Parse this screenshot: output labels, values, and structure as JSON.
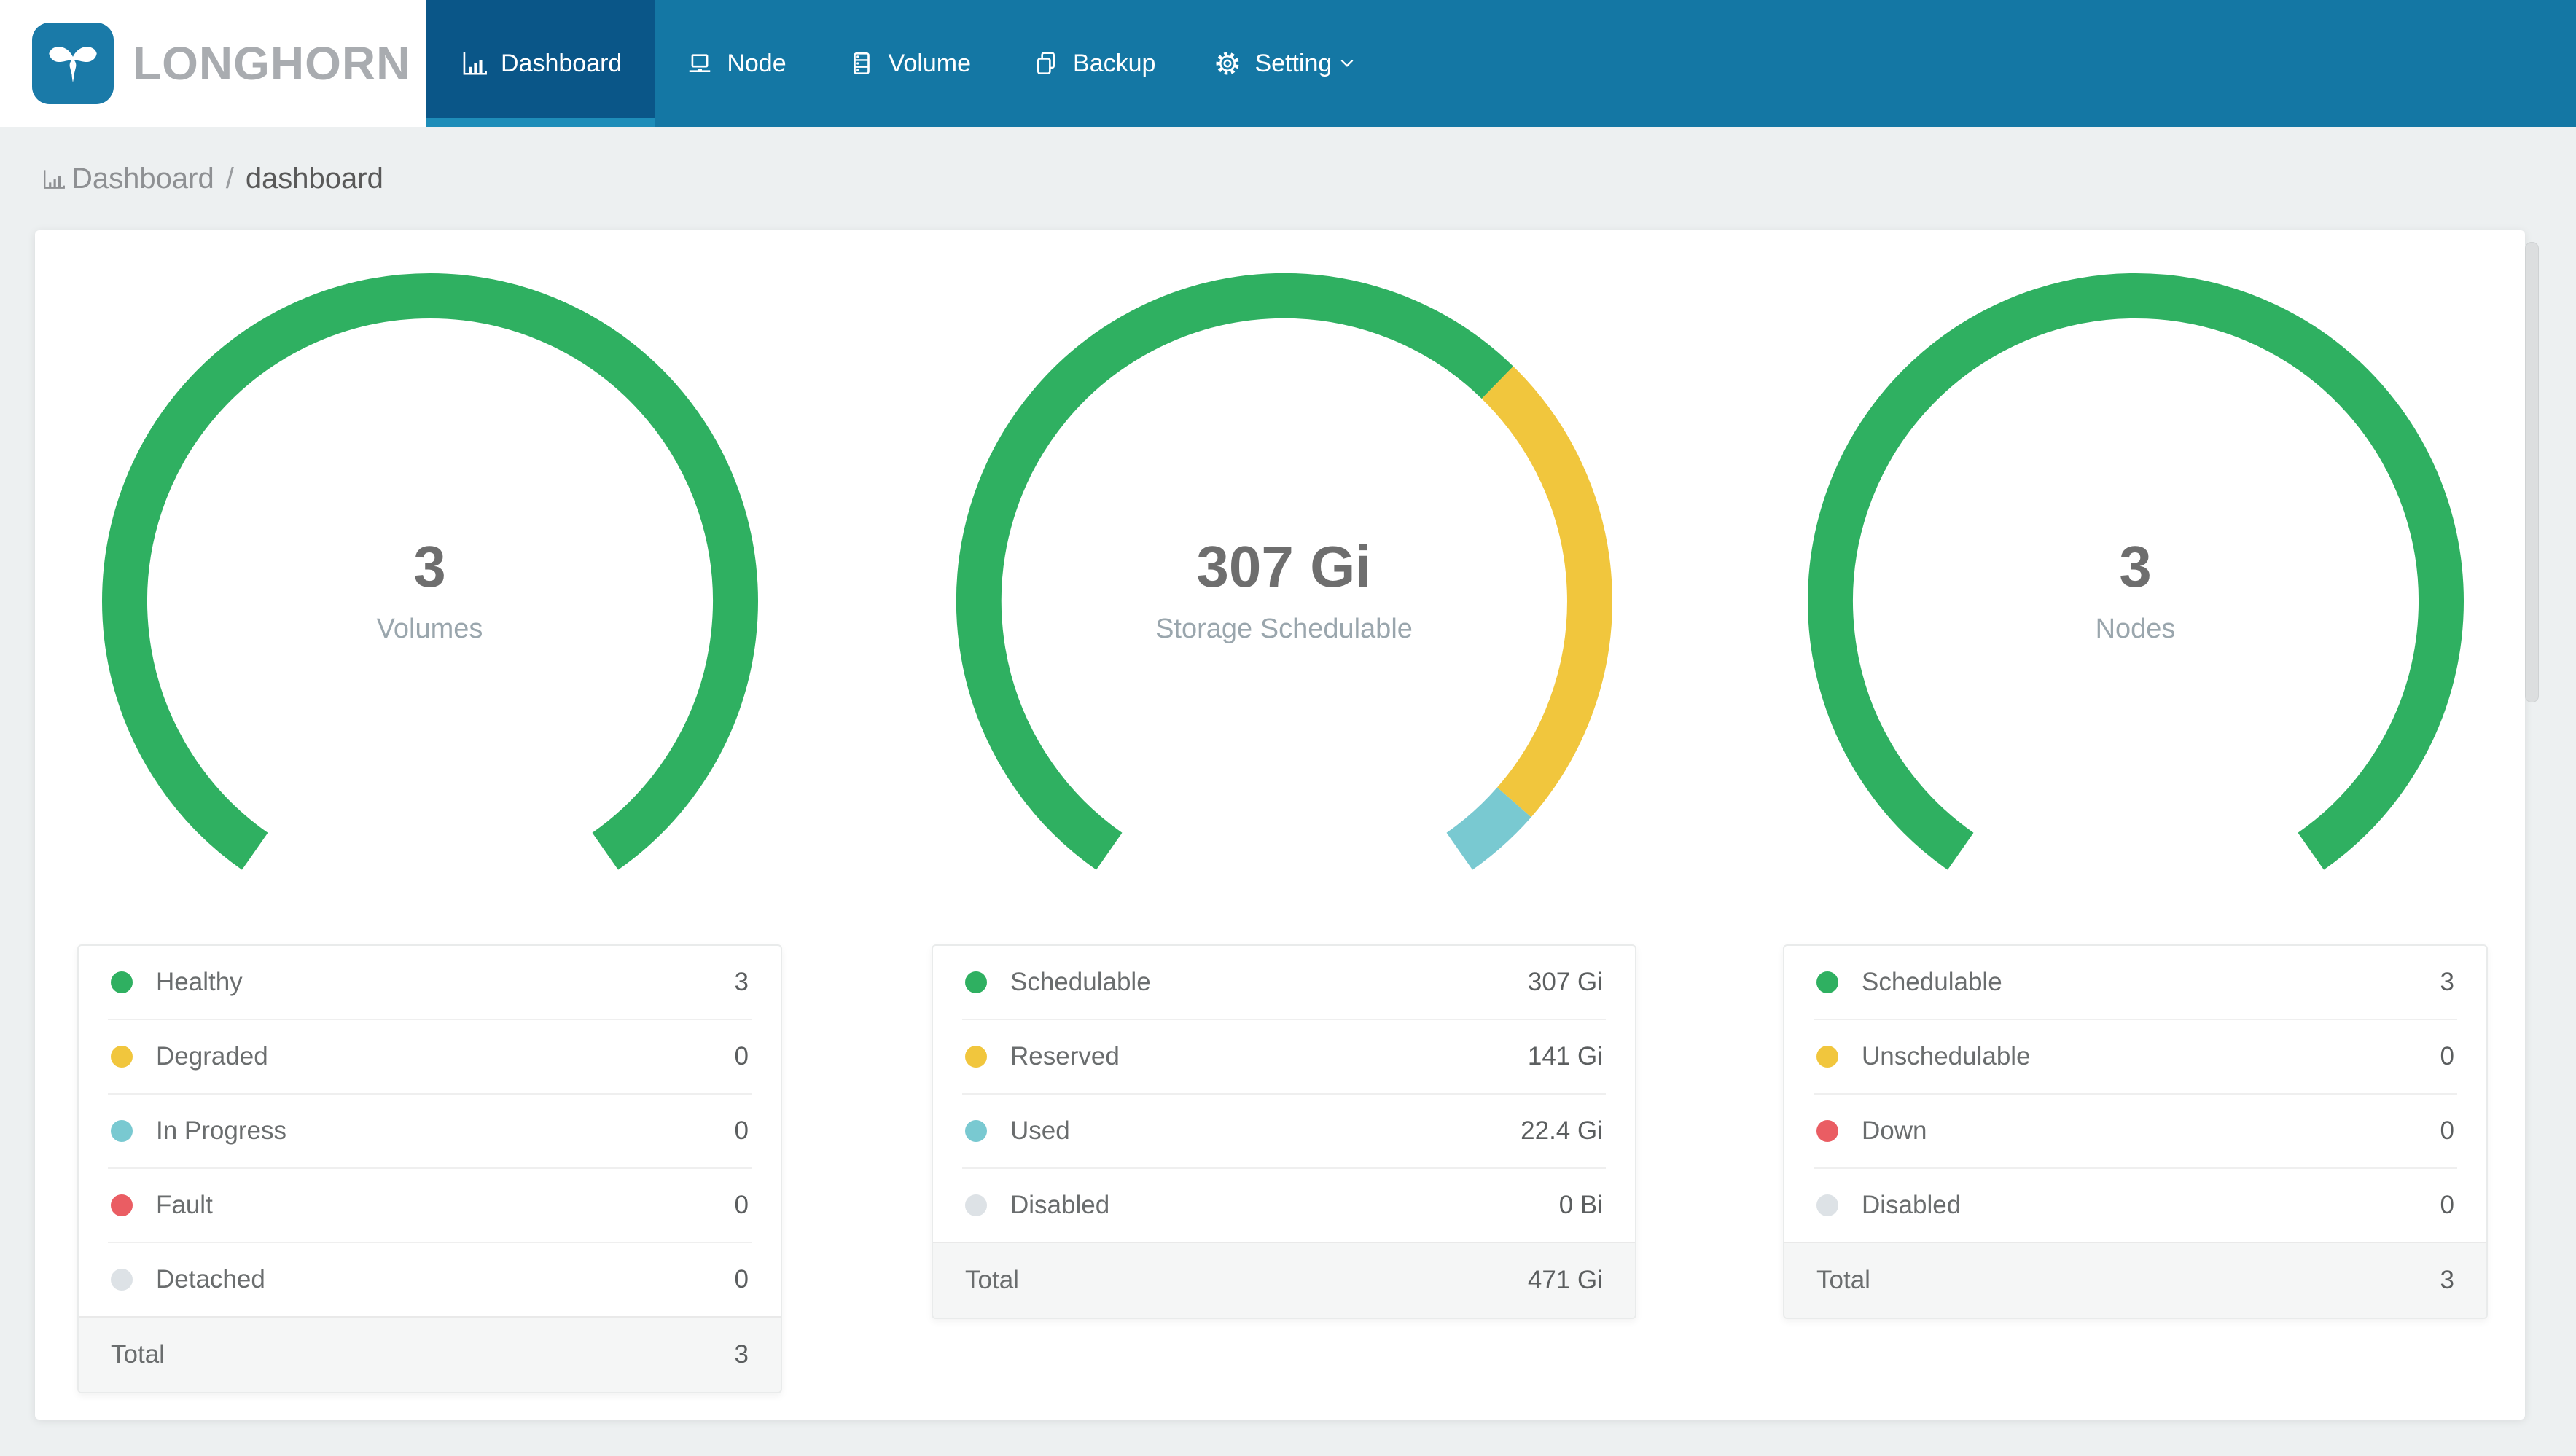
{
  "header": {
    "brand": "LONGHORN",
    "nav_items": [
      {
        "label": "Dashboard",
        "icon": "bar-chart",
        "active": true
      },
      {
        "label": "Node",
        "icon": "laptop",
        "active": false
      },
      {
        "label": "Volume",
        "icon": "database",
        "active": false
      },
      {
        "label": "Backup",
        "icon": "copy",
        "active": false
      },
      {
        "label": "Setting",
        "icon": "gear",
        "active": false,
        "has_dropdown": true
      }
    ]
  },
  "breadcrumb": {
    "root": "Dashboard",
    "separator": "/",
    "current": "dashboard"
  },
  "colors": {
    "navbar_bg": "#1477a4",
    "active_tab_bg": "#0a5688",
    "active_tab_indicator": "#1e8db9",
    "logo_blue": "#1a7aa8",
    "page_bg": "#edf0f1",
    "green": "#2fb061",
    "yellow": "#f1c63d",
    "teal": "#79c9d1",
    "red": "#ea5d63",
    "gray": "#dde2e6"
  },
  "chart_data": [
    {
      "type": "gauge",
      "title": "Volumes",
      "value_label": "3",
      "arc": {
        "start_angle": 235,
        "sweep": 290,
        "gap_position": "bottom"
      },
      "series": [
        {
          "name": "Healthy",
          "value": 3,
          "color": "#2fb061"
        },
        {
          "name": "Degraded",
          "value": 0,
          "color": "#f1c63d"
        },
        {
          "name": "In Progress",
          "value": 0,
          "color": "#79c9d1"
        },
        {
          "name": "Fault",
          "value": 0,
          "color": "#ea5d63"
        },
        {
          "name": "Detached",
          "value": 0,
          "color": "#dde2e6"
        }
      ]
    },
    {
      "type": "gauge",
      "title": "Storage Schedulable",
      "value_label": "307 Gi",
      "arc": {
        "start_angle": 235,
        "sweep": 290,
        "gap_position": "bottom"
      },
      "series": [
        {
          "name": "Schedulable",
          "value": 307,
          "color": "#2fb061"
        },
        {
          "name": "Reserved",
          "value": 141,
          "color": "#f1c63d"
        },
        {
          "name": "Used",
          "value": 22.4,
          "color": "#79c9d1"
        },
        {
          "name": "Disabled",
          "value": 0,
          "color": "#dde2e6"
        }
      ]
    },
    {
      "type": "gauge",
      "title": "Nodes",
      "value_label": "3",
      "arc": {
        "start_angle": 235,
        "sweep": 290,
        "gap_position": "bottom"
      },
      "series": [
        {
          "name": "Schedulable",
          "value": 3,
          "color": "#2fb061"
        },
        {
          "name": "Unschedulable",
          "value": 0,
          "color": "#f1c63d"
        },
        {
          "name": "Down",
          "value": 0,
          "color": "#ea5d63"
        },
        {
          "name": "Disabled",
          "value": 0,
          "color": "#dde2e6"
        }
      ]
    }
  ],
  "legend_cards": [
    {
      "rows": [
        {
          "label": "Healthy",
          "value": "3",
          "color": "#2fb061"
        },
        {
          "label": "Degraded",
          "value": "0",
          "color": "#f1c63d"
        },
        {
          "label": "In Progress",
          "value": "0",
          "color": "#79c9d1"
        },
        {
          "label": "Fault",
          "value": "0",
          "color": "#ea5d63"
        },
        {
          "label": "Detached",
          "value": "0",
          "color": "#dde2e6"
        }
      ],
      "total_label": "Total",
      "total_value": "3"
    },
    {
      "rows": [
        {
          "label": "Schedulable",
          "value": "307 Gi",
          "color": "#2fb061"
        },
        {
          "label": "Reserved",
          "value": "141 Gi",
          "color": "#f1c63d"
        },
        {
          "label": "Used",
          "value": "22.4 Gi",
          "color": "#79c9d1"
        },
        {
          "label": "Disabled",
          "value": "0 Bi",
          "color": "#dde2e6"
        }
      ],
      "total_label": "Total",
      "total_value": "471 Gi"
    },
    {
      "rows": [
        {
          "label": "Schedulable",
          "value": "3",
          "color": "#2fb061"
        },
        {
          "label": "Unschedulable",
          "value": "0",
          "color": "#f1c63d"
        },
        {
          "label": "Down",
          "value": "0",
          "color": "#ea5d63"
        },
        {
          "label": "Disabled",
          "value": "0",
          "color": "#dde2e6"
        }
      ],
      "total_label": "Total",
      "total_value": "3"
    }
  ]
}
